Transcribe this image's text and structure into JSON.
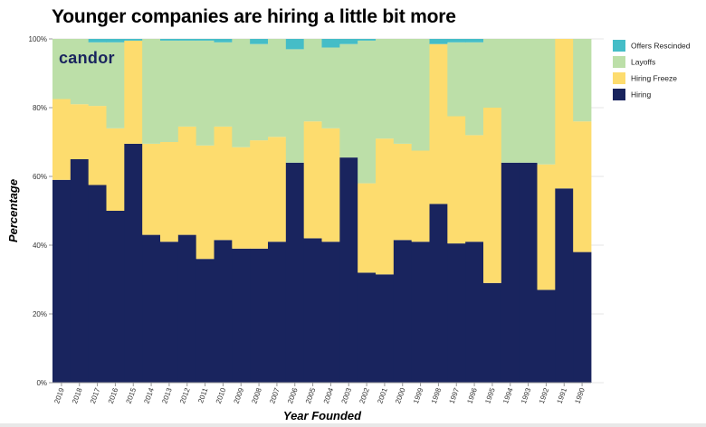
{
  "brand": "candor",
  "colors": {
    "offers_rescinded": "#45bdc7",
    "layoffs": "#bcdfa8",
    "hiring_freeze": "#fddc6e",
    "hiring": "#19245e",
    "brand": "#19245e"
  },
  "chart_data": {
    "type": "bar",
    "stacked": true,
    "normalized": true,
    "title": "Younger companies are hiring a little bit more",
    "xlabel": "Year Founded",
    "ylabel": "Percentage",
    "ylim": [
      0,
      100
    ],
    "y_ticks": [
      "0%",
      "20%",
      "40%",
      "60%",
      "80%",
      "100%"
    ],
    "grid": true,
    "legend_position": "top-right",
    "categories": [
      "2019",
      "2018",
      "2017",
      "2016",
      "2015",
      "2014",
      "2013",
      "2012",
      "2011",
      "2010",
      "2009",
      "2008",
      "2007",
      "2006",
      "2005",
      "2004",
      "2003",
      "2002",
      "2001",
      "2000",
      "1999",
      "1998",
      "1997",
      "1996",
      "1995",
      "1994",
      "1993",
      "1992",
      "1991",
      "1990"
    ],
    "series": [
      {
        "name": "Hiring",
        "key": "hiring",
        "values": [
          59,
          65,
          57.5,
          50,
          69.5,
          43,
          41,
          43,
          36,
          41.5,
          39,
          39,
          41,
          64,
          42,
          41,
          65.5,
          32,
          31.5,
          41.5,
          41,
          52,
          40.5,
          41,
          29,
          64,
          64,
          27,
          56.5,
          38
        ]
      },
      {
        "name": "Hiring Freeze",
        "key": "hiring_freeze",
        "values": [
          23.5,
          16,
          23,
          24,
          30,
          26.5,
          29,
          31.5,
          33,
          33,
          29.5,
          31.5,
          30.5,
          0,
          34,
          33,
          0,
          26,
          39.5,
          28,
          26.5,
          46.5,
          37,
          31,
          51,
          0,
          0,
          36.5,
          43.5,
          38
        ]
      },
      {
        "name": "Layoffs",
        "key": "layoffs",
        "values": [
          17.5,
          19,
          18.5,
          25,
          0,
          30.5,
          29.5,
          25,
          30.5,
          24.5,
          31.5,
          28,
          28.5,
          33,
          24,
          23.5,
          33,
          41.5,
          29,
          30.5,
          32.5,
          0,
          21.5,
          27,
          20,
          36,
          36,
          36.5,
          0,
          24
        ]
      },
      {
        "name": "Offers Rescinded",
        "key": "offers_rescinded",
        "values": [
          0,
          0,
          1,
          1,
          0.5,
          0,
          0.5,
          0.5,
          0.5,
          1,
          0,
          1.5,
          0,
          3,
          0,
          2.5,
          1.5,
          0.5,
          0,
          0,
          0,
          1.5,
          1,
          1,
          0,
          0,
          0,
          0,
          0,
          0
        ]
      }
    ],
    "legend": [
      "Offers Rescinded",
      "Layoffs",
      "Hiring Freeze",
      "Hiring"
    ]
  }
}
